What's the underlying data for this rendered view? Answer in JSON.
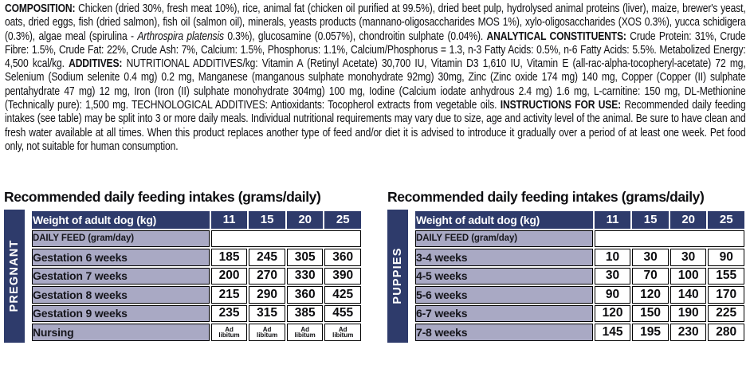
{
  "colors": {
    "navy": "#2e3b6b",
    "lavender": "#a9a9c4",
    "border": "#000000",
    "text": "#121215"
  },
  "label": {
    "segments": [
      {
        "text": "COMPOSITION: ",
        "bold": true
      },
      {
        "text": "Chicken (dried 30%, fresh meat 10%), rice, animal fat (chicken oil purified at 99.5%), dried beet pulp, hydrolysed animal proteins (liver), maize, brewer's yeast, oats, dried eggs, fish (dried salmon), fish oil (salmon oil), minerals, yeasts products (mannano-oligosaccharides MOS 1%), xylo-oligosaccharides (XOS 0.3%), yucca schidigera (0.3%), algae meal (spirulina - "
      },
      {
        "text": "Arthrospira platensis",
        "italic": true
      },
      {
        "text": " 0.3%), glucosamine (0.057%), chondroitin sulphate (0.04%). "
      },
      {
        "text": "ANALYTICAL CONSTITUENTS: ",
        "bold": true
      },
      {
        "text": "Crude Protein: 31%, Crude Fibre: 1.5%, Crude Fat: 22%, Crude Ash: 7%, Calcium: 1.5%, Phosphorus: 1.1%, Calcium/Phosphorus = 1.3, n-3 Fatty Acids: 0.5%, n-6 Fatty Acids: 5.5%. Metabolized Energy: 4,500 kcal/kg. "
      },
      {
        "text": "ADDITIVES: ",
        "bold": true
      },
      {
        "text": "NUTRITIONAL ADDITIVES/kg: Vitamin A (Retinyl Acetate) 30,700 IU, Vitamin D3 1,610 IU, Vitamin E (all-rac-alpha-tocopheryl-acetate) 72 mg, Selenium (Sodium selenite 0.4 mg) 0.2 mg, Manganese (manganous sulphate monohydrate 92mg) 30mg, Zinc (Zinc oxide 174 mg) 140 mg, Copper (Copper (II) sulphate pentahydrate 47 mg) 12 mg, Iron (Iron (II) sulphate monohydrate 304mg) 100 mg, Iodine (Calcium iodate anhydrous 2.4 mg) 1.6 mg, L-carnitine: 150 mg, DL-Methionine (Technically pure): 1,500 mg. TECHNOLOGICAL ADDITIVES: Antioxidants: Tocopherol extracts from vegetable oils. "
      },
      {
        "text": "INSTRUCTIONS FOR USE: ",
        "bold": true
      },
      {
        "text": "Recommended daily feeding intakes (see table) may be split into 3 or more daily meals. Individual nutritional requirements may vary due to size, age and activity level of the animal. Be sure to have clean and fresh water available at all times. When this product replaces another type of feed and/or diet it is advised to introduce it gradually over a period of at least one week. Pet food only, not suitable for human consumption."
      }
    ]
  },
  "tables": [
    {
      "side_label": "PREGNANT",
      "title": "Recommended daily feeding intakes (grams/daily)",
      "header_label": "Weight of adult dog (kg)",
      "weights": [
        "11",
        "15",
        "20",
        "25"
      ],
      "subheader_label": "DAILY FEED (gram/day)",
      "rows": [
        {
          "label": "Gestation 6 weeks",
          "values": [
            "185",
            "245",
            "305",
            "360"
          ]
        },
        {
          "label": "Gestation 7 weeks",
          "values": [
            "200",
            "270",
            "330",
            "390"
          ]
        },
        {
          "label": "Gestation 8 weeks",
          "values": [
            "215",
            "290",
            "360",
            "425"
          ]
        },
        {
          "label": "Gestation 9 weeks",
          "values": [
            "235",
            "315",
            "385",
            "455"
          ]
        },
        {
          "label": "Nursing",
          "values": [
            "Ad libitum",
            "Ad libitum",
            "Ad libitum",
            "Ad libitum"
          ],
          "small": true
        }
      ]
    },
    {
      "side_label": "PUPPIES",
      "title": "Recommended daily feeding intakes (grams/daily)",
      "header_label": "Weight of adult dog (kg)",
      "weights": [
        "11",
        "15",
        "20",
        "25"
      ],
      "subheader_label": "DAILY FEED (gram/day)",
      "rows": [
        {
          "label": "3-4 weeks",
          "values": [
            "10",
            "30",
            "30",
            "90"
          ]
        },
        {
          "label": "4-5 weeks",
          "values": [
            "30",
            "70",
            "100",
            "155"
          ]
        },
        {
          "label": "5-6 weeks",
          "values": [
            "90",
            "120",
            "140",
            "170"
          ]
        },
        {
          "label": "6-7 weeks",
          "values": [
            "120",
            "150",
            "190",
            "225"
          ]
        },
        {
          "label": "7-8 weeks",
          "values": [
            "145",
            "195",
            "230",
            "280"
          ]
        }
      ]
    }
  ]
}
